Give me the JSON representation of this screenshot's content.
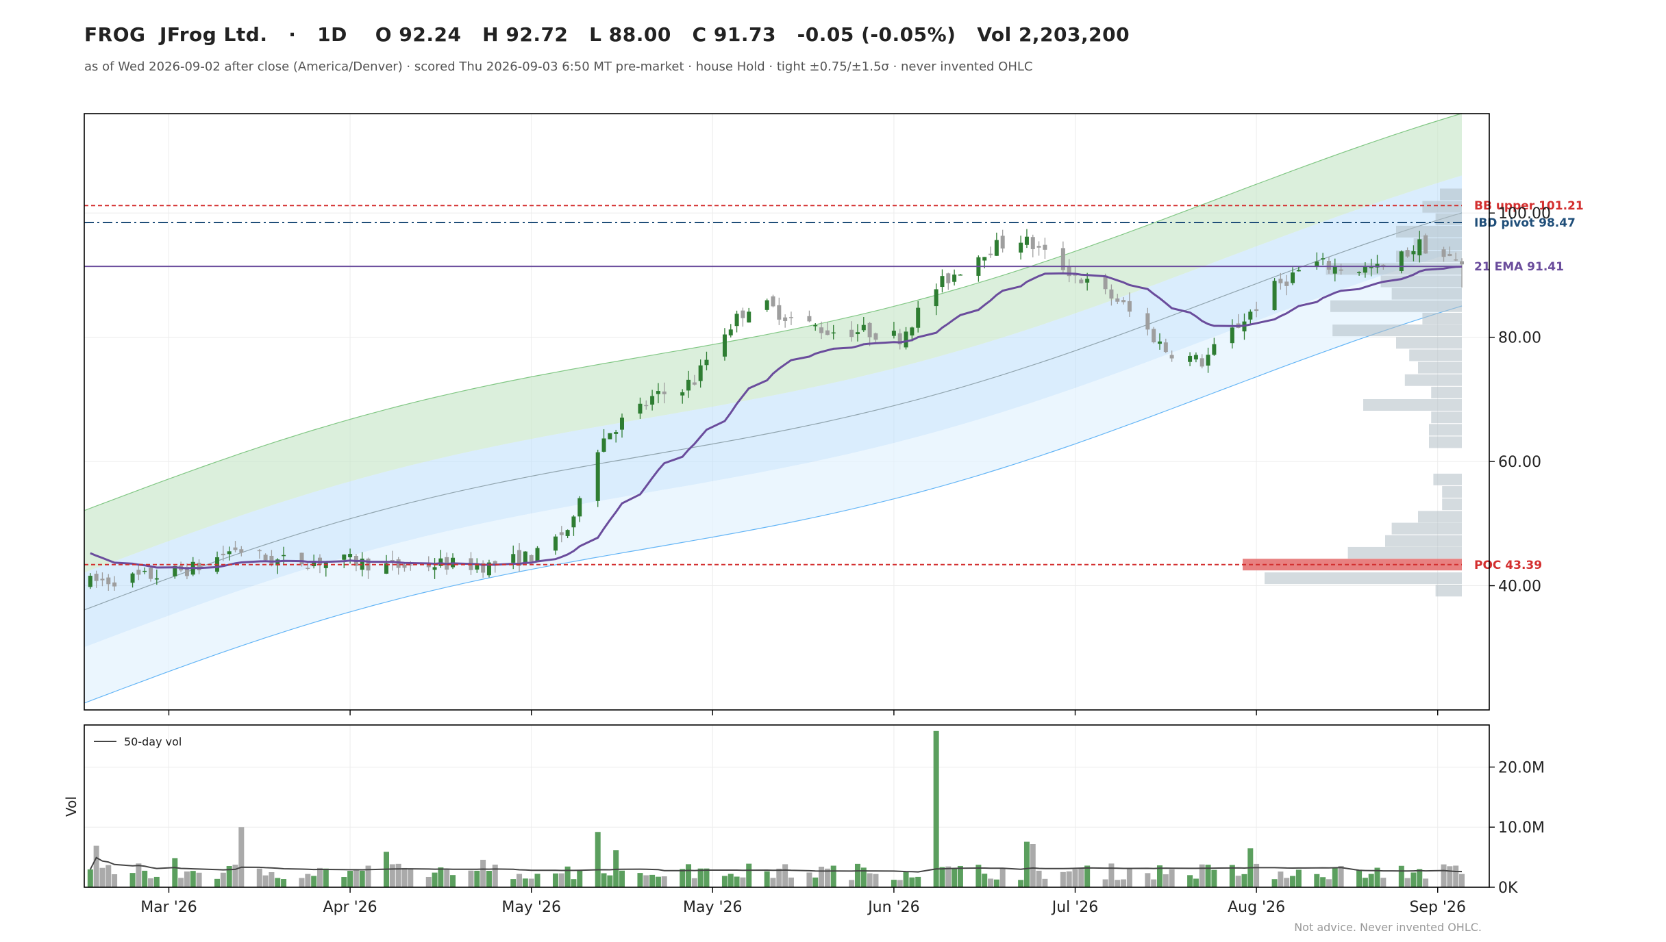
{
  "header": {
    "title": "FROG  JFrog Ltd.   ·   1D    O 92.24   H 92.72   L 88.00   C 91.73   -0.05 (-0.05%)   Vol 2,203,200",
    "subtitle": "as of Wed 2026-09-02 after close (America/Denver) · scored Thu 2026-09-03 6:50 MT pre-market · house Hold · tight ±0.75/±1.5σ · never invented OHLC"
  },
  "footer": "Not advice. Never invented OHLC.",
  "colors": {
    "up": "#2e7d32",
    "down": "#9e9e9e",
    "ema": "#6a4c9c",
    "ibd_pivot": "#1f4e79",
    "bb_upper": "#d32f2f",
    "poc": "#d32f2f",
    "band_green": "#c8e6c9",
    "band_blue": "#bbdefb",
    "volume_profile": "#b0bec5"
  },
  "chart_data": [
    {
      "type": "candlestick",
      "ylim": [
        20,
        116
      ],
      "y_ticks": [
        "40.00",
        "60.00",
        "80.00",
        "100.00"
      ],
      "y_tick_values": [
        40,
        60,
        80,
        100
      ],
      "x_ticks": [
        "Mar '26",
        "Apr '26",
        "May '26",
        "May '26",
        "Jun '26",
        "Jul '26",
        "Aug '26",
        "Sep '26"
      ],
      "x_tick_days": [
        15,
        45,
        75,
        105,
        135,
        165,
        195,
        225
      ],
      "x_range_days": [
        1,
        229
      ],
      "grid": true,
      "levels": [
        {
          "name": "BB upper",
          "label": "BB upper  101.21",
          "value": 101.21,
          "style": "dashed",
          "color": "#d32f2f"
        },
        {
          "name": "IBD pivot",
          "label": "IBD pivot  98.47",
          "value": 98.47,
          "style": "dashdot",
          "color": "#1f4e79"
        },
        {
          "name": "21 EMA",
          "label": "21 EMA  91.41",
          "value": 91.41,
          "style": "solid",
          "color": "#6a4c9c"
        },
        {
          "name": "POC",
          "label": "POC  43.39",
          "value": 43.39,
          "style": "dashed",
          "color": "#d32f2f"
        }
      ],
      "volume_profile": [
        {
          "price": 43.4,
          "width": 1.0,
          "highlight": true
        },
        {
          "price": 41.2,
          "width": 0.9
        },
        {
          "price": 45.3,
          "width": 0.52
        },
        {
          "price": 47.2,
          "width": 0.35
        },
        {
          "price": 49.2,
          "width": 0.32
        },
        {
          "price": 51.1,
          "width": 0.2
        },
        {
          "price": 53.1,
          "width": 0.09
        },
        {
          "price": 55.1,
          "width": 0.09
        },
        {
          "price": 57.1,
          "width": 0.13
        },
        {
          "price": 39.2,
          "width": 0.12
        },
        {
          "price": 63.1,
          "width": 0.15
        },
        {
          "price": 65.1,
          "width": 0.15
        },
        {
          "price": 67.1,
          "width": 0.14
        },
        {
          "price": 69.1,
          "width": 0.45
        },
        {
          "price": 71.1,
          "width": 0.14
        },
        {
          "price": 73.1,
          "width": 0.26
        },
        {
          "price": 75.1,
          "width": 0.2
        },
        {
          "price": 77.1,
          "width": 0.24
        },
        {
          "price": 79.1,
          "width": 0.3
        },
        {
          "price": 81.1,
          "width": 0.59
        },
        {
          "price": 83.0,
          "width": 0.18
        },
        {
          "price": 85.0,
          "width": 0.6
        },
        {
          "price": 87.0,
          "width": 0.32
        },
        {
          "price": 89.0,
          "width": 0.37
        },
        {
          "price": 91.0,
          "width": 0.62
        },
        {
          "price": 93.0,
          "width": 0.3
        },
        {
          "price": 95.0,
          "width": 0.22
        },
        {
          "price": 97.0,
          "width": 0.3
        },
        {
          "price": 99.0,
          "width": 0.12
        },
        {
          "price": 101.0,
          "width": 0.18
        },
        {
          "price": 103.0,
          "width": 0.1
        }
      ]
    },
    {
      "type": "bar",
      "ylabel": "Vol",
      "y_ticks": [
        "0K",
        "10.0M",
        "20.0M"
      ],
      "y_tick_values": [
        0,
        10000000,
        20000000
      ],
      "ylim": [
        0,
        27000000
      ],
      "legend": "50-day vol",
      "legend_position": "top-left",
      "grid": true
    }
  ]
}
